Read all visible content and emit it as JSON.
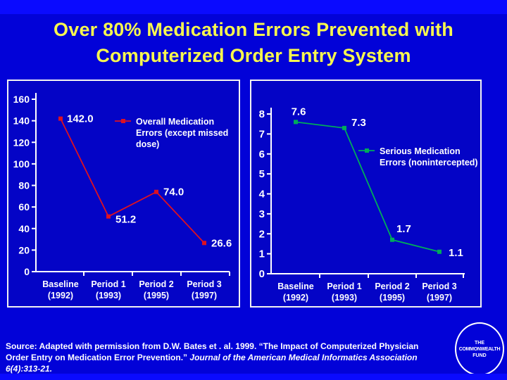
{
  "title": {
    "line1": "Over 80% Medication Errors Prevented with",
    "line2": "Computerized Order Entry System"
  },
  "colors": {
    "background": "#0202D8",
    "edge_strip": "#0A0AFF",
    "title_text": "#F8F84E",
    "panel_border": "#F2F2F2",
    "panel_background": "#0404C6",
    "axis_and_text": "#FFFFFF",
    "left_series": "#DD1122",
    "right_series": "#00AC5A"
  },
  "chart_data": [
    {
      "type": "line",
      "title": "",
      "categories": [
        "Baseline (1992)",
        "Period 1 (1993)",
        "Period 2 (1995)",
        "Period 3 (1997)"
      ],
      "category_labels": [
        [
          "Baseline",
          "(1992)"
        ],
        [
          "Period 1",
          "(1993)"
        ],
        [
          "Period 2",
          "(1995)"
        ],
        [
          "Period 3",
          "(1997)"
        ]
      ],
      "series": [
        {
          "name": "Overall Medication Errors (except missed dose)",
          "values": [
            142.0,
            51.2,
            74.0,
            26.6
          ],
          "color": "#DD1122"
        }
      ],
      "point_labels": [
        "142.0",
        "51.2",
        "74.0",
        "26.6"
      ],
      "legend_lines": [
        "Overall Medication",
        "Errors (except missed",
        "dose)"
      ],
      "legend_position": "inside-upper-right",
      "ylim": [
        0,
        160
      ],
      "ytick_step": 20,
      "grid": false
    },
    {
      "type": "line",
      "title": "",
      "categories": [
        "Baseline (1992)",
        "Period 1 (1993)",
        "Period 2 (1995)",
        "Period 3 (1997)"
      ],
      "category_labels": [
        [
          "Baseline",
          "(1992)"
        ],
        [
          "Period 1",
          "(1993)"
        ],
        [
          "Period 2",
          "(1995)"
        ],
        [
          "Period 3",
          "(1997)"
        ]
      ],
      "series": [
        {
          "name": "Serious Medication Errors (nonintercepted)",
          "values": [
            7.6,
            7.3,
            1.7,
            1.1
          ],
          "color": "#00AC5A"
        }
      ],
      "point_labels": [
        "7.6",
        "7.3",
        "1.7",
        "1.1"
      ],
      "legend_lines": [
        "Serious Medication",
        "Errors (nonintercepted)"
      ],
      "legend_position": "inside-middle-right",
      "ylim": [
        0,
        8
      ],
      "ytick_step": 1,
      "grid": false
    }
  ],
  "source": {
    "line1": "Source: Adapted with permission from D.W. Bates et . al. 1999.  “The Impact of Computerized Physician",
    "line2_normal": "Order Entry on Medication Error Prevention.”  ",
    "line2_italic": "Journal of the American Medical Informatics Association",
    "line3_italic": "6(4):313-21."
  },
  "logo": {
    "line1": "THE",
    "line2": "COMMONWEALTH",
    "line3": "FUND"
  }
}
